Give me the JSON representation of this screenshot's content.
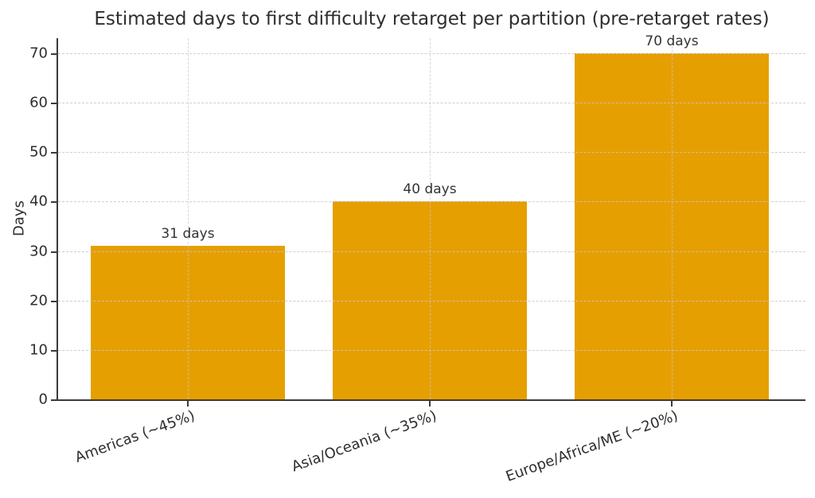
{
  "chart_data": {
    "type": "bar",
    "title": "Estimated days to first difficulty retarget per partition (pre-retarget rates)",
    "xlabel": "",
    "ylabel": "Days",
    "categories": [
      "Americas (~45%)",
      "Asia/Oceania (~35%)",
      "Europe/Africa/ME (~20%)"
    ],
    "values": [
      31,
      40,
      70
    ],
    "bar_labels": [
      "31 days",
      "40 days",
      "70 days"
    ],
    "yticks": [
      0,
      10,
      20,
      30,
      40,
      50,
      60,
      70
    ],
    "ylim": [
      0,
      73
    ],
    "grid": "dashed horizontal and vertical",
    "legend_position": "none",
    "bar_color": "#E69F00",
    "axis_color": "#3a3a3a",
    "grid_color": "#c7c7c7",
    "text_color": "#2e2e2e",
    "xtick_rotation_deg": -20
  }
}
